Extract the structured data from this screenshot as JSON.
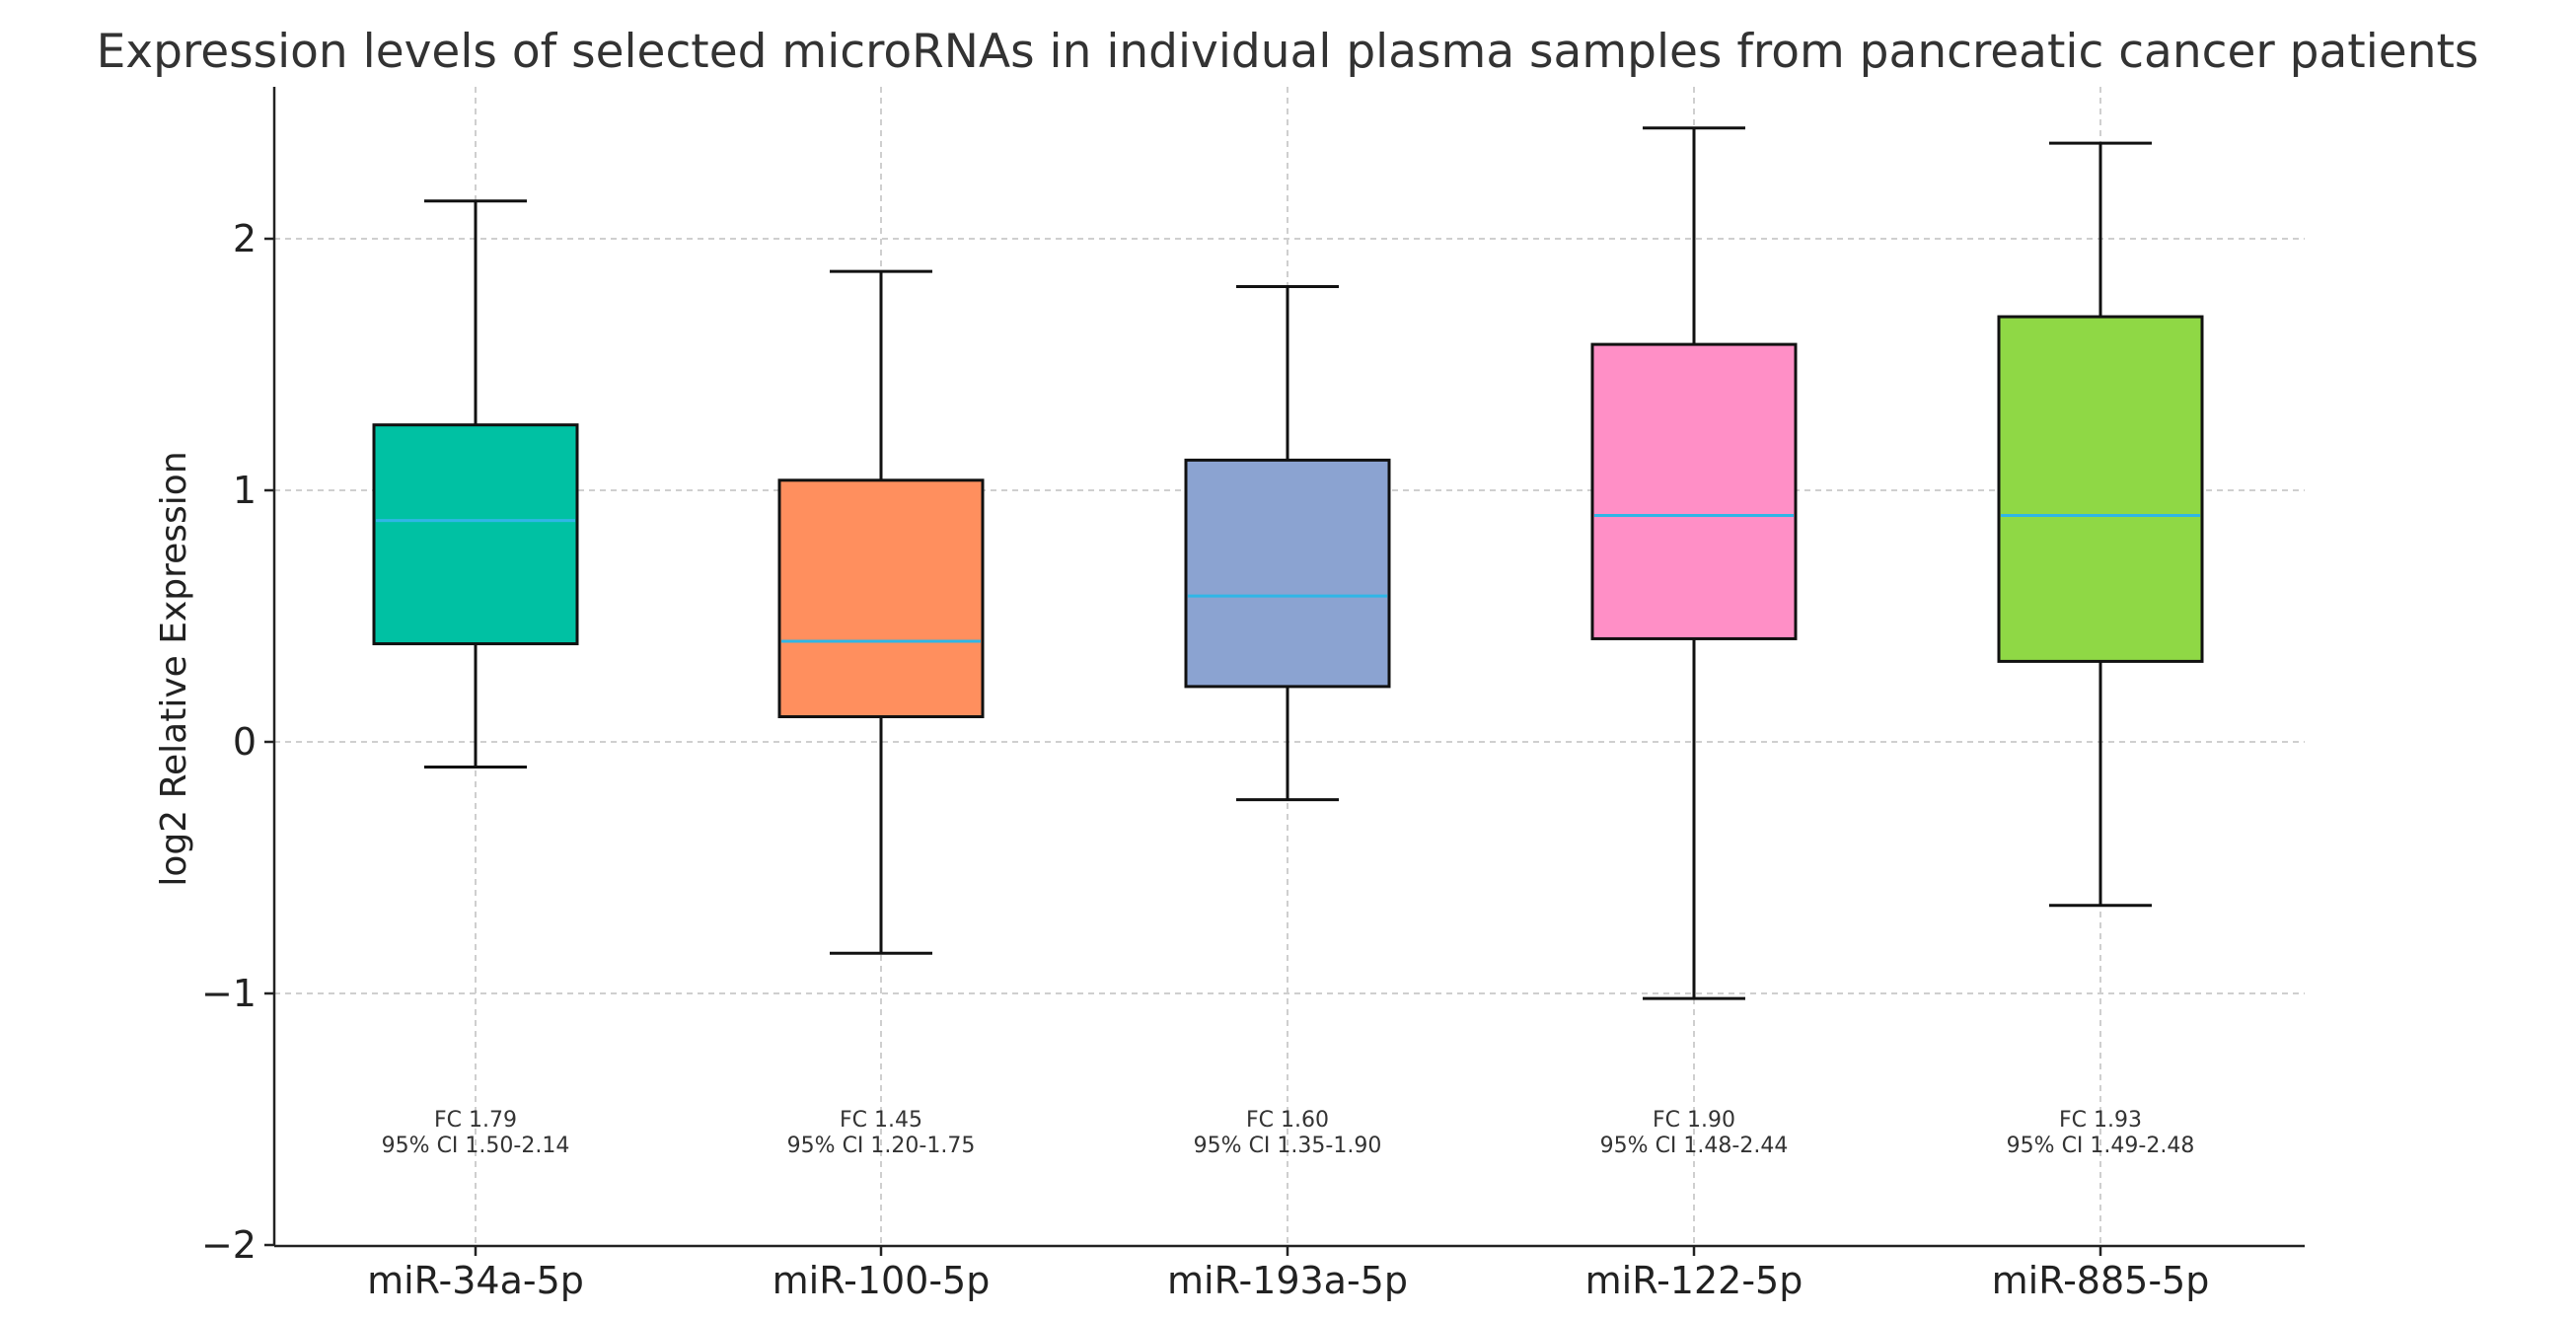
{
  "chart_data": {
    "type": "box",
    "title": "Expression levels of selected microRNAs in individual plasma samples from pancreatic cancer patients",
    "xlabel": "",
    "ylabel": "log2 Relative Expression",
    "ylim": [
      -2,
      2.6
    ],
    "yticks": [
      2,
      1,
      0,
      -1,
      -2
    ],
    "ytick_labels": [
      "2",
      "1",
      "0",
      "−1",
      "−2"
    ],
    "grid": true,
    "categories": [
      "miR-34a-5p",
      "miR-100-5p",
      "miR-193a-5p",
      "miR-122-5p",
      "miR-885-5p"
    ],
    "boxes": [
      {
        "name": "miR-34a-5p",
        "whisker_low": -0.1,
        "q1": 0.39,
        "median": 0.88,
        "q3": 1.26,
        "whisker_high": 2.15,
        "color": "#00c1a3",
        "annotation_line1": "FC 1.79",
        "annotation_line2": "95% CI 1.50-2.14"
      },
      {
        "name": "miR-100-5p",
        "whisker_low": -0.84,
        "q1": 0.1,
        "median": 0.4,
        "q3": 1.04,
        "whisker_high": 1.87,
        "color": "#ff8f5e",
        "annotation_line1": "FC 1.45",
        "annotation_line2": "95% CI 1.20-1.75"
      },
      {
        "name": "miR-193a-5p",
        "whisker_low": -0.23,
        "q1": 0.22,
        "median": 0.58,
        "q3": 1.12,
        "whisker_high": 1.81,
        "color": "#8ba3d1",
        "annotation_line1": "FC 1.60",
        "annotation_line2": "95% CI 1.35-1.90"
      },
      {
        "name": "miR-122-5p",
        "whisker_low": -1.02,
        "q1": 0.41,
        "median": 0.9,
        "q3": 1.58,
        "whisker_high": 2.44,
        "color": "#ff8fc6",
        "annotation_line1": "FC 1.90",
        "annotation_line2": "95% CI 1.48-2.44"
      },
      {
        "name": "miR-885-5p",
        "whisker_low": -0.65,
        "q1": 0.32,
        "median": 0.9,
        "q3": 1.69,
        "whisker_high": 2.38,
        "color": "#8fd845",
        "annotation_line1": "FC 1.93",
        "annotation_line2": "95% CI 1.49-2.48"
      }
    ],
    "median_color": "#2fb6e6",
    "annotation_y": -1.58
  }
}
